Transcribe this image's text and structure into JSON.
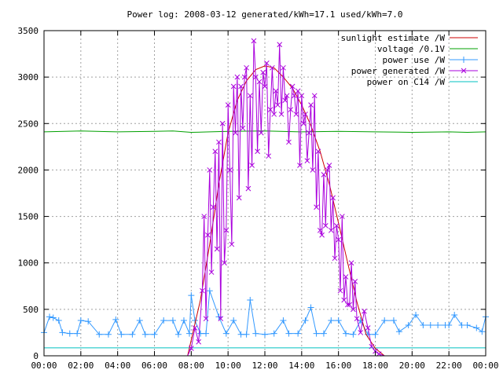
{
  "chart_data": {
    "type": "line",
    "title": "Power log: 2008-03-12 generated/kWh=17.1 used/kWh=7.0",
    "xlabel": "",
    "ylabel": "",
    "xlim": [
      0,
      24
    ],
    "ylim": [
      0,
      3500
    ],
    "x_ticks": [
      "00:00",
      "02:00",
      "04:00",
      "06:00",
      "08:00",
      "10:00",
      "12:00",
      "14:00",
      "16:00",
      "18:00",
      "20:00",
      "22:00",
      "00:00"
    ],
    "y_ticks": [
      0,
      500,
      1000,
      1500,
      2000,
      2500,
      3000,
      3500
    ],
    "grid": true,
    "legend_position": "top-right",
    "series": [
      {
        "name": "sunlight estimate /W",
        "color": "#cc0000",
        "marker": "none",
        "x": [
          0,
          7.8,
          8.5,
          9.0,
          9.5,
          10.0,
          10.5,
          11.0,
          11.5,
          12.0,
          12.5,
          13.0,
          13.5,
          14.0,
          14.5,
          15.0,
          15.5,
          16.0,
          16.5,
          17.0,
          17.5,
          18.0,
          18.5,
          24
        ],
        "y": [
          0,
          0,
          600,
          1200,
          1850,
          2400,
          2750,
          2960,
          3080,
          3120,
          3100,
          3000,
          2880,
          2700,
          2480,
          2200,
          1850,
          1430,
          1000,
          580,
          230,
          80,
          0,
          0
        ]
      },
      {
        "name": "voltage /0.1V",
        "color": "#00a000",
        "marker": "none",
        "x": [
          0,
          2,
          4,
          6,
          7,
          8,
          9,
          10,
          12,
          14,
          16,
          18,
          20,
          22,
          23,
          24
        ],
        "y": [
          2410,
          2420,
          2410,
          2415,
          2420,
          2405,
          2410,
          2415,
          2420,
          2410,
          2415,
          2410,
          2405,
          2410,
          2405,
          2410
        ]
      },
      {
        "name": "power use /W",
        "color": "#3399ff",
        "marker": "plus",
        "x": [
          0,
          0.3,
          0.5,
          0.8,
          1.0,
          1.4,
          1.8,
          2.0,
          2.4,
          3.0,
          3.5,
          3.9,
          4.2,
          4.8,
          5.2,
          5.5,
          6.0,
          6.5,
          7.0,
          7.3,
          7.6,
          7.9,
          8.0,
          8.2,
          8.5,
          8.8,
          9.0,
          9.5,
          9.9,
          10.3,
          10.7,
          11.0,
          11.2,
          11.5,
          12.0,
          12.5,
          13.0,
          13.3,
          13.8,
          14.2,
          14.5,
          14.8,
          15.2,
          15.6,
          16.0,
          16.4,
          16.8,
          17.2,
          17.6,
          18.0,
          18.5,
          19.0,
          19.3,
          19.8,
          20.2,
          20.6,
          21.0,
          21.4,
          21.8,
          22.0,
          22.3,
          22.7,
          23.0,
          23.5,
          23.8,
          24.0
        ],
        "y": [
          250,
          420,
          410,
          380,
          250,
          240,
          240,
          380,
          370,
          230,
          230,
          390,
          230,
          230,
          380,
          230,
          230,
          380,
          380,
          230,
          380,
          240,
          650,
          380,
          240,
          240,
          700,
          420,
          240,
          380,
          230,
          230,
          600,
          240,
          230,
          240,
          380,
          240,
          240,
          380,
          520,
          240,
          240,
          380,
          380,
          240,
          230,
          380,
          230,
          230,
          380,
          380,
          260,
          330,
          440,
          330,
          330,
          330,
          330,
          330,
          440,
          330,
          330,
          300,
          260,
          420
        ]
      },
      {
        "name": "power generated /W",
        "color": "#aa00dd",
        "marker": "cross",
        "x": [
          0,
          7.5,
          7.8,
          8.0,
          8.2,
          8.4,
          8.6,
          8.7,
          8.8,
          8.9,
          9.0,
          9.1,
          9.2,
          9.3,
          9.4,
          9.5,
          9.6,
          9.7,
          9.8,
          9.9,
          10.0,
          10.1,
          10.2,
          10.3,
          10.4,
          10.5,
          10.6,
          10.7,
          10.8,
          10.9,
          11.0,
          11.1,
          11.2,
          11.3,
          11.4,
          11.5,
          11.6,
          11.7,
          11.8,
          11.9,
          12.0,
          12.1,
          12.2,
          12.3,
          12.4,
          12.5,
          12.6,
          12.7,
          12.8,
          12.9,
          13.0,
          13.1,
          13.2,
          13.3,
          13.4,
          13.5,
          13.6,
          13.7,
          13.8,
          13.9,
          14.0,
          14.1,
          14.2,
          14.3,
          14.4,
          14.5,
          14.6,
          14.7,
          14.8,
          14.9,
          15.0,
          15.1,
          15.2,
          15.3,
          15.4,
          15.5,
          15.6,
          15.7,
          15.8,
          15.9,
          16.0,
          16.1,
          16.2,
          16.3,
          16.4,
          16.5,
          16.6,
          16.7,
          16.8,
          16.9,
          17.0,
          17.2,
          17.4,
          17.6,
          17.8,
          18.0,
          18.2,
          18.5,
          18.8,
          19.0,
          24
        ],
        "y": [
          0,
          0,
          0,
          80,
          300,
          150,
          700,
          1500,
          400,
          1300,
          2000,
          900,
          1600,
          2200,
          1150,
          2300,
          400,
          2500,
          1000,
          1350,
          2700,
          2000,
          1200,
          2900,
          2400,
          3000,
          1700,
          2900,
          2450,
          3000,
          3100,
          1800,
          2800,
          2050,
          3390,
          3000,
          2200,
          2950,
          2400,
          3050,
          2900,
          3150,
          2150,
          2650,
          3100,
          2600,
          2850,
          2700,
          3350,
          2600,
          3100,
          2750,
          2800,
          2300,
          2650,
          2900,
          2800,
          2600,
          2850,
          2050,
          2800,
          2500,
          2600,
          2100,
          2400,
          2700,
          2000,
          2800,
          1600,
          2200,
          1350,
          1300,
          1950,
          1400,
          2000,
          2050,
          1350,
          1700,
          1050,
          1400,
          1250,
          700,
          1500,
          600,
          850,
          550,
          550,
          1000,
          500,
          800,
          400,
          250,
          480,
          300,
          100,
          50,
          20,
          0,
          0,
          0,
          0
        ]
      },
      {
        "name": "power on C14 /W",
        "color": "#00c0c0",
        "marker": "none",
        "x": [
          0,
          24
        ],
        "y": [
          85,
          85
        ]
      }
    ]
  }
}
